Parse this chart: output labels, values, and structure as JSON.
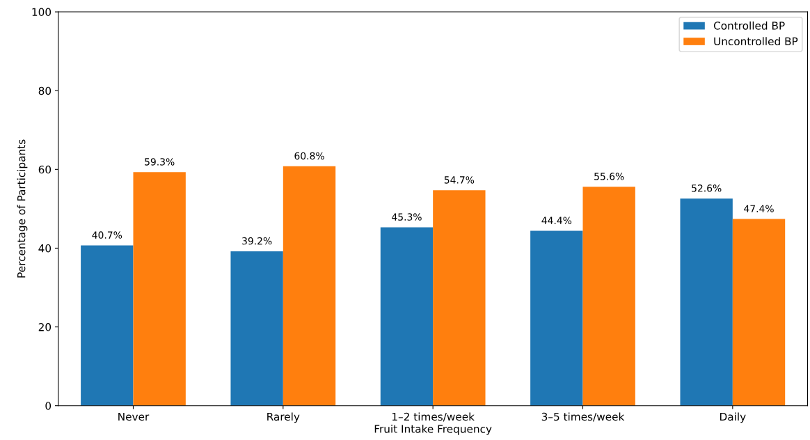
{
  "chart_data": {
    "type": "bar",
    "xlabel": "Fruit Intake Frequency",
    "ylabel": "Percentage of Participants",
    "categories": [
      "Never",
      "Rarely",
      "1–2 times/week",
      "3–5 times/week",
      "Daily"
    ],
    "series": [
      {
        "name": "Controlled BP",
        "color": "#1f77b4",
        "values": [
          40.7,
          39.2,
          45.3,
          44.4,
          52.6
        ],
        "value_labels": [
          "40.7%",
          "39.2%",
          "45.3%",
          "44.4%",
          "52.6%"
        ]
      },
      {
        "name": "Uncontrolled BP",
        "color": "#ff7f0e",
        "values": [
          59.3,
          60.8,
          54.7,
          55.6,
          47.4
        ],
        "value_labels": [
          "59.3%",
          "60.8%",
          "54.7%",
          "55.6%",
          "47.4%"
        ]
      }
    ],
    "ylim": [
      0,
      100
    ],
    "yticks": [
      0,
      20,
      40,
      60,
      80,
      100
    ],
    "legend": "top right",
    "grid": false
  }
}
